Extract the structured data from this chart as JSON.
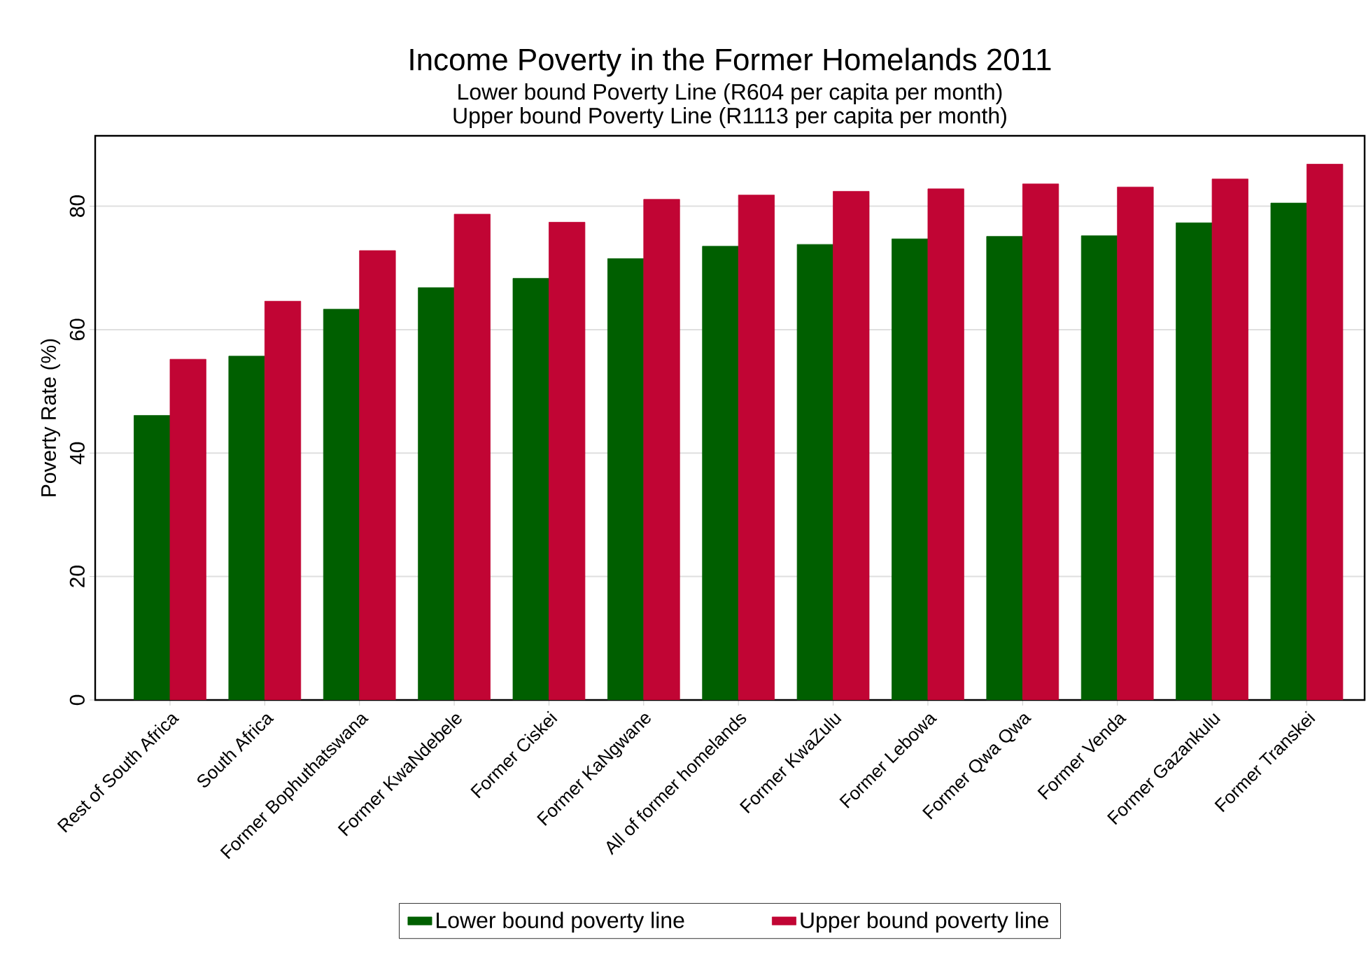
{
  "chart_data": {
    "type": "bar",
    "title": "Income Poverty in the Former Homelands 2011",
    "subtitle": "Lower bound Poverty Line (R604 per capita per month)",
    "annotations": [
      "Upper bound Poverty Line (R1113 per capita per month)"
    ],
    "ylabel": "Poverty Rate (%)",
    "categories": [
      "Rest of South Africa",
      "South Africa",
      "Former Bophuthatswana",
      "Former KwaNdebele",
      "Former Ciskei",
      "Former KaNgwane",
      "All of former homelands",
      "Former KwaZulu",
      "Former Lebowa",
      "Former Qwa Qwa",
      "Former Venda",
      "Former Gazankulu",
      "Former Transkei"
    ],
    "series": [
      {
        "name": "Lower bound poverty line",
        "color": "#005f00",
        "values": [
          46.1,
          55.7,
          63.3,
          66.8,
          68.3,
          71.5,
          73.5,
          73.8,
          74.7,
          75.1,
          75.2,
          77.3,
          80.5
        ]
      },
      {
        "name": "Upper bound poverty line",
        "color": "#c10534",
        "values": [
          55.2,
          64.6,
          72.8,
          78.7,
          77.4,
          81.1,
          81.8,
          82.4,
          82.8,
          83.6,
          83.1,
          84.4,
          86.8
        ]
      }
    ],
    "ylim": [
      0,
      91.4
    ],
    "yticks": [
      0,
      20,
      40,
      60,
      80
    ],
    "grid": "y",
    "legend": "bottom"
  }
}
